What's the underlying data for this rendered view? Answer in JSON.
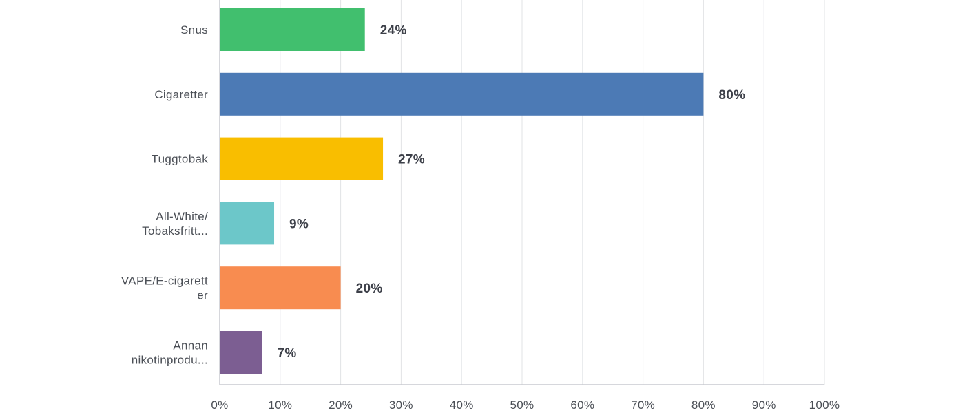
{
  "chart_data": {
    "type": "bar",
    "orientation": "horizontal",
    "categories": [
      [
        "Snus"
      ],
      [
        "Cigaretter"
      ],
      [
        "Tuggtobak"
      ],
      [
        "All-White/",
        "Tobaksfritt..."
      ],
      [
        "VAPE/E-cigarett",
        "er"
      ],
      [
        "Annan",
        "nikotinprodu..."
      ]
    ],
    "values": [
      24,
      80,
      27,
      9,
      20,
      7
    ],
    "value_labels": [
      "24%",
      "80%",
      "27%",
      "9%",
      "20%",
      "7%"
    ],
    "colors": [
      "#41bf6e",
      "#4c7ab5",
      "#f9be00",
      "#6cc7c9",
      "#f88c50",
      "#7c5e92"
    ],
    "xlim": [
      0,
      100
    ],
    "x_ticks": [
      0,
      10,
      20,
      30,
      40,
      50,
      60,
      70,
      80,
      90,
      100
    ],
    "x_tick_labels": [
      "0%",
      "10%",
      "20%",
      "30%",
      "40%",
      "50%",
      "60%",
      "70%",
      "80%",
      "90%",
      "100%"
    ],
    "grid": true,
    "title": "",
    "xlabel": "",
    "ylabel": ""
  }
}
